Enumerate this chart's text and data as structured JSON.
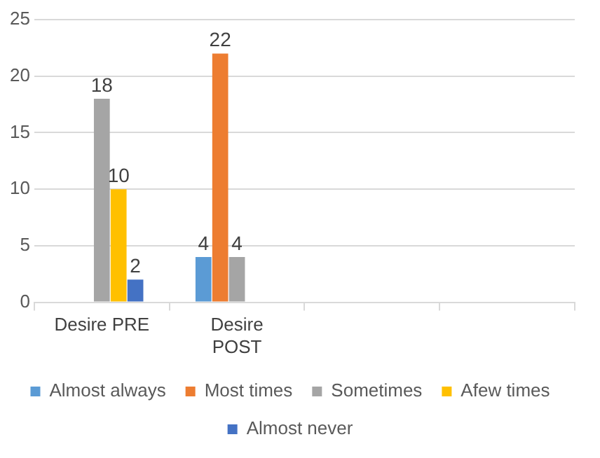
{
  "chart_data": {
    "type": "bar",
    "categories": [
      "Desire PRE",
      "Desire POST",
      null,
      null
    ],
    "series": [
      {
        "name": "Almost always",
        "color": "#5b9bd5",
        "values": [
          null,
          4,
          null,
          null
        ]
      },
      {
        "name": "Most times",
        "color": "#ed7d31",
        "values": [
          null,
          22,
          null,
          null
        ]
      },
      {
        "name": "Sometimes",
        "color": "#a5a5a5",
        "values": [
          18,
          4,
          null,
          null
        ]
      },
      {
        "name": "Afew times",
        "color": "#ffc000",
        "values": [
          10,
          null,
          null,
          null
        ]
      },
      {
        "name": "Almost never",
        "color": "#4472c4",
        "values": [
          2,
          null,
          null,
          null
        ]
      }
    ],
    "ylim": [
      0,
      25
    ],
    "yticks": [
      0,
      5,
      10,
      15,
      20,
      25
    ],
    "grid": "y",
    "legend": "bottom",
    "data_labels": true
  }
}
